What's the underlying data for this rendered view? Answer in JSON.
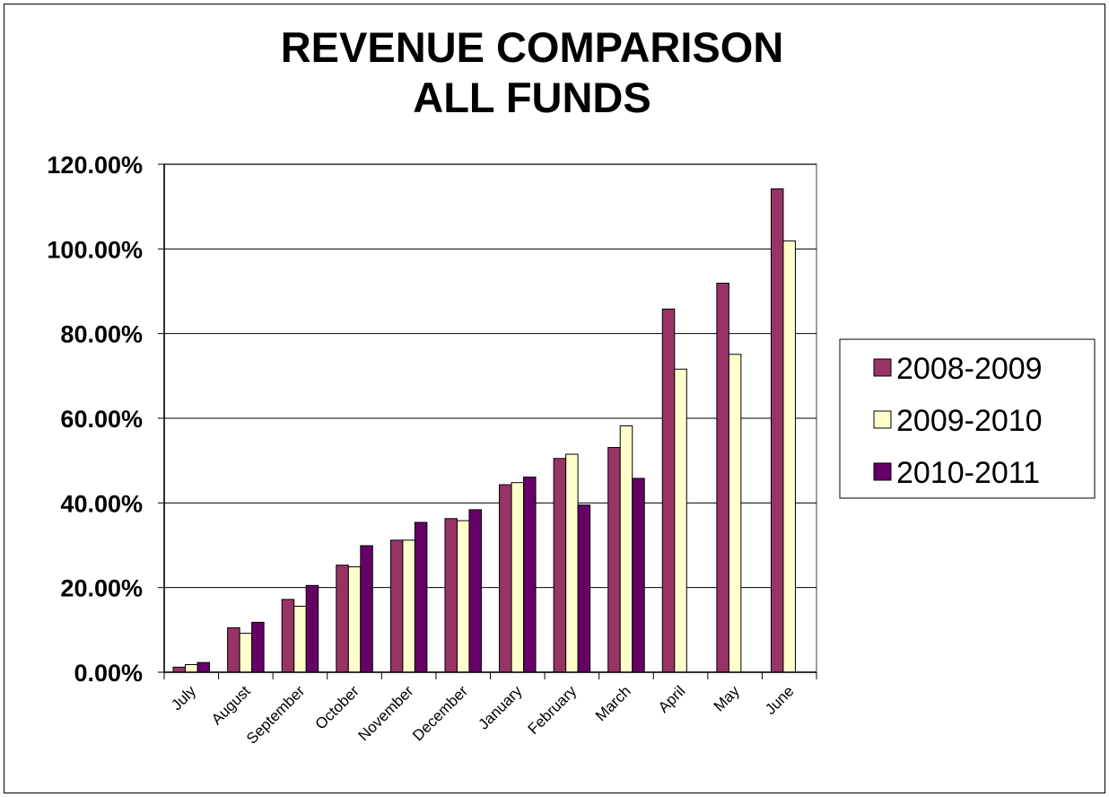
{
  "chart_data": {
    "type": "bar",
    "title": [
      "REVENUE COMPARISON",
      "ALL FUNDS"
    ],
    "categories": [
      "July",
      "August",
      "September",
      "October",
      "November",
      "December",
      "January",
      "February",
      "March",
      "April",
      "May",
      "June"
    ],
    "series": [
      {
        "name": "2008-2009",
        "color": "#993366",
        "values": [
          1.2,
          10.5,
          17.2,
          25.3,
          31.2,
          36.3,
          44.3,
          50.5,
          53.1,
          85.8,
          91.9,
          114.2
        ]
      },
      {
        "name": "2009-2010",
        "color": "#FFFFCC",
        "values": [
          1.8,
          9.2,
          15.6,
          24.9,
          31.2,
          35.8,
          44.8,
          51.5,
          58.2,
          71.6,
          75.1,
          101.9
        ]
      },
      {
        "name": "2010-2011",
        "color": "#660066",
        "values": [
          2.3,
          11.8,
          20.5,
          29.9,
          35.4,
          38.4,
          46.1,
          39.5,
          45.8,
          null,
          null,
          null
        ]
      }
    ],
    "ylim": [
      0,
      120
    ],
    "yticks": [
      0,
      20,
      40,
      60,
      80,
      100,
      120
    ],
    "ytick_labels": [
      "0.00%",
      "20.00%",
      "40.00%",
      "60.00%",
      "80.00%",
      "100.00%",
      "120.00%"
    ],
    "grid": true,
    "legend_position": "right"
  }
}
